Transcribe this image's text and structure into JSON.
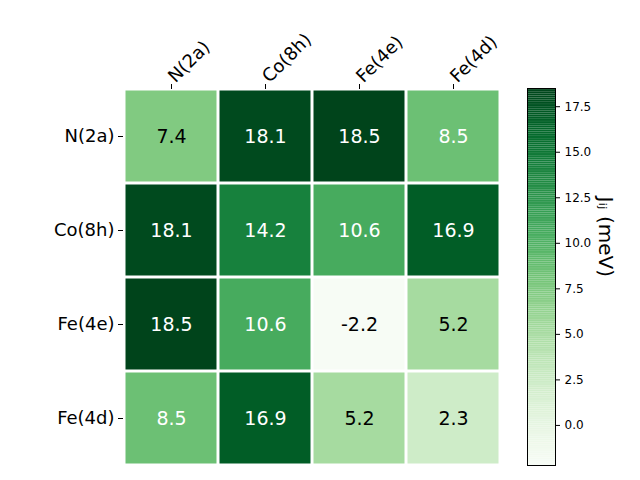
{
  "chart_data": {
    "type": "heatmap",
    "categories": [
      "N(2a)",
      "Co(8h)",
      "Fe(4e)",
      "Fe(4d)"
    ],
    "values": [
      [
        7.4,
        18.1,
        18.5,
        8.5
      ],
      [
        18.1,
        14.2,
        10.6,
        16.9
      ],
      [
        18.5,
        10.6,
        -2.2,
        5.2
      ],
      [
        8.5,
        16.9,
        5.2,
        2.3
      ]
    ],
    "data_labels": true,
    "colorbar": {
      "label": "Jᵢⱼ (meV)",
      "range": [
        -2.2,
        18.5
      ],
      "ticks": [
        {
          "value": 0,
          "label": "0.0"
        },
        2.5,
        {
          "value": 5,
          "label": "5.0"
        },
        7.5,
        {
          "value": 10,
          "label": "10.0"
        },
        12.5,
        {
          "value": 15,
          "label": "15.0"
        },
        17.5
      ]
    }
  }
}
